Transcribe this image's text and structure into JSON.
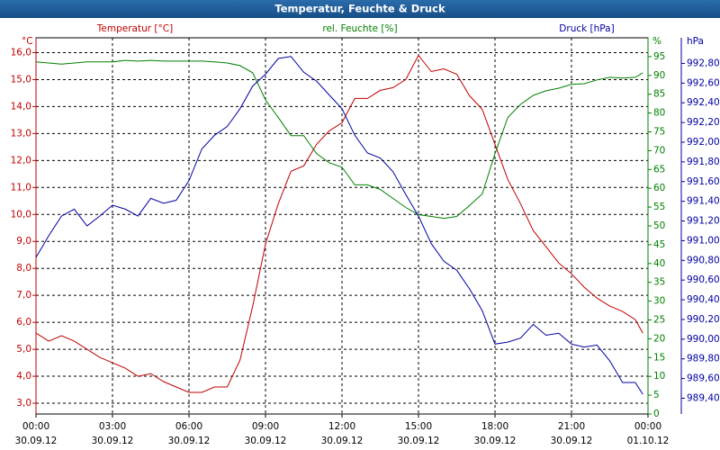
{
  "chart_data": {
    "type": "line",
    "title": "Temperatur, Feuchte & Druck",
    "y_unit": "°C",
    "y2_unit": "%",
    "y3_unit": "hPa",
    "xlim": [
      0,
      24
    ],
    "xticks": [
      {
        "value": 0,
        "label": "00:00"
      },
      {
        "value": 3,
        "label": "03:00"
      },
      {
        "value": 6,
        "label": "06:00"
      },
      {
        "value": 9,
        "label": "09:00"
      },
      {
        "value": 12,
        "label": "12:00"
      },
      {
        "value": 15,
        "label": "15:00"
      },
      {
        "value": 18,
        "label": "18:00"
      },
      {
        "value": 21,
        "label": "21:00"
      },
      {
        "value": 24,
        "label": "00:00"
      }
    ],
    "xtick_dates": [
      "30.09.12",
      "30.09.12",
      "30.09.12",
      "30.09.12",
      "30.09.12",
      "30.09.12",
      "30.09.12",
      "30.09.12",
      "01.10.12"
    ],
    "ylim": [
      2.6,
      16.55
    ],
    "yticks": [
      {
        "value": 3,
        "label": "3,0"
      },
      {
        "value": 4,
        "label": "4,0"
      },
      {
        "value": 5,
        "label": "5,0"
      },
      {
        "value": 6,
        "label": "6,0"
      },
      {
        "value": 7,
        "label": "7,0"
      },
      {
        "value": 8,
        "label": "8,0"
      },
      {
        "value": 9,
        "label": "9,0"
      },
      {
        "value": 10,
        "label": "10,0"
      },
      {
        "value": 11,
        "label": "11,0"
      },
      {
        "value": 12,
        "label": "12,0"
      },
      {
        "value": 13,
        "label": "13,0"
      },
      {
        "value": 14,
        "label": "14,0"
      },
      {
        "value": 15,
        "label": "15,0"
      },
      {
        "value": 16,
        "label": "16,0"
      }
    ],
    "y2lim": [
      0,
      100
    ],
    "y2ticks": [
      0,
      5,
      10,
      15,
      20,
      25,
      30,
      35,
      40,
      45,
      50,
      55,
      60,
      65,
      70,
      75,
      80,
      85,
      90,
      95
    ],
    "y3lim": [
      989.24,
      993.06
    ],
    "y3ticks": [
      {
        "value": 989.4,
        "label": "989,40"
      },
      {
        "value": 989.6,
        "label": "989,60"
      },
      {
        "value": 989.8,
        "label": "989,80"
      },
      {
        "value": 990.0,
        "label": "990,00"
      },
      {
        "value": 990.2,
        "label": "990,20"
      },
      {
        "value": 990.4,
        "label": "990,40"
      },
      {
        "value": 990.6,
        "label": "990,60"
      },
      {
        "value": 990.8,
        "label": "990,80"
      },
      {
        "value": 991.0,
        "label": "991,00"
      },
      {
        "value": 991.2,
        "label": "991,20"
      },
      {
        "value": 991.4,
        "label": "991,40"
      },
      {
        "value": 991.6,
        "label": "991,60"
      },
      {
        "value": 991.8,
        "label": "991,80"
      },
      {
        "value": 992.0,
        "label": "992,00"
      },
      {
        "value": 992.2,
        "label": "992,20"
      },
      {
        "value": 992.4,
        "label": "992,40"
      },
      {
        "value": 992.6,
        "label": "992,60"
      },
      {
        "value": 992.8,
        "label": "992,80"
      }
    ],
    "grid": true,
    "x": [
      0,
      0.5,
      1,
      1.5,
      2,
      2.5,
      3,
      3.5,
      4,
      4.5,
      5,
      5.5,
      6,
      6.5,
      7,
      7.5,
      8,
      8.5,
      9,
      9.5,
      10,
      10.5,
      11,
      11.5,
      12,
      12.5,
      13,
      13.5,
      14,
      14.5,
      15,
      15.5,
      16,
      16.5,
      17,
      17.5,
      18,
      18.5,
      19,
      19.5,
      20,
      20.5,
      21,
      21.5,
      22,
      22.5,
      23,
      23.5,
      23.8
    ],
    "series": [
      {
        "name": "Temperatur [°C]",
        "color": "#c00000",
        "axis": "y",
        "values": [
          5.6,
          5.3,
          5.5,
          5.3,
          5.0,
          4.7,
          4.5,
          4.3,
          4.0,
          4.1,
          3.8,
          3.6,
          3.4,
          3.4,
          3.6,
          3.6,
          4.6,
          6.6,
          8.9,
          10.4,
          11.6,
          11.8,
          12.6,
          13.1,
          13.4,
          14.3,
          14.3,
          14.6,
          14.7,
          15.0,
          15.9,
          15.3,
          15.4,
          15.2,
          14.4,
          13.9,
          12.6,
          11.3,
          10.4,
          9.4,
          8.8,
          8.2,
          7.8,
          7.3,
          6.9,
          6.6,
          6.4,
          6.1,
          5.6
        ]
      },
      {
        "name": "rel. Feuchte [%]",
        "color": "#008000",
        "axis": "y2",
        "values": [
          93.6,
          93.3,
          93,
          93.3,
          93.6,
          93.6,
          93.6,
          94,
          93.8,
          94,
          93.8,
          93.8,
          93.8,
          93.8,
          93.6,
          93.3,
          92.6,
          90.7,
          83.5,
          78.8,
          74,
          74,
          69.2,
          66.8,
          65.6,
          60.9,
          60.9,
          59.7,
          57.3,
          54.9,
          53,
          52.5,
          52,
          52.5,
          55.4,
          58.5,
          69.2,
          78.8,
          82.3,
          84.7,
          85.9,
          86.6,
          87.6,
          87.8,
          88.8,
          89.5,
          89.3,
          89.5,
          90.7
        ]
      },
      {
        "name": "Druck [hPa]",
        "color": "#0000a0",
        "axis": "y3",
        "values": [
          990.83,
          991.05,
          991.25,
          991.32,
          991.15,
          991.25,
          991.36,
          991.32,
          991.25,
          991.43,
          991.38,
          991.41,
          991.61,
          991.93,
          992.07,
          992.16,
          992.34,
          992.57,
          992.69,
          992.85,
          992.87,
          992.71,
          992.62,
          992.48,
          992.34,
          992.07,
          991.89,
          991.84,
          991.7,
          991.47,
          991.25,
          990.97,
          990.79,
          990.7,
          990.51,
          990.29,
          989.95,
          989.97,
          990.01,
          990.15,
          990.04,
          990.06,
          989.95,
          989.92,
          989.94,
          989.78,
          989.56,
          989.56,
          989.44
        ]
      }
    ]
  }
}
